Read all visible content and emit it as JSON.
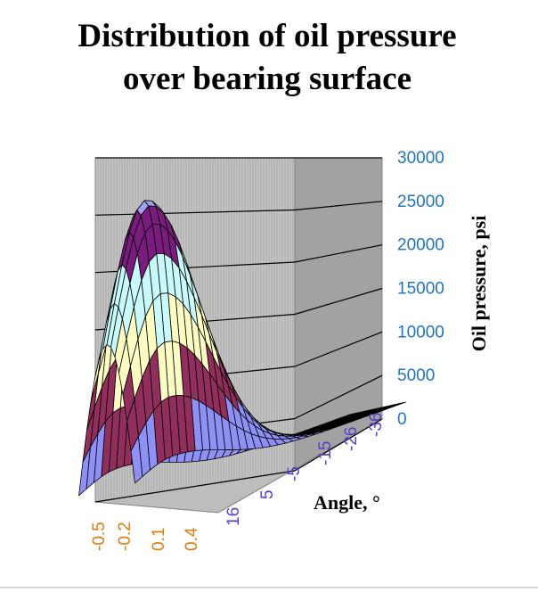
{
  "chart_data": {
    "type": "surface",
    "title_lines": [
      "Distribution of oil pressure",
      "over bearing surface"
    ],
    "zlabel": "Oil pressure, psi",
    "angle_label": "Angle, °",
    "z_ticks": [
      "30000",
      "25000",
      "20000",
      "15000",
      "10000",
      "5000",
      "0"
    ],
    "angle_ticks": [
      "16",
      "5",
      "-5",
      "-15",
      "-26",
      "-36"
    ],
    "position_ticks": [
      "-0.5",
      "-0.2",
      "0.1",
      "0.4"
    ],
    "zlim": [
      0,
      30000
    ],
    "peak_pressure": 26000,
    "band_colors": [
      "#8f90f5",
      "#922e5c",
      "#fdfcc2",
      "#c8f9fb",
      "#7a1c7e",
      "#9fa2f2"
    ],
    "grid": true
  }
}
